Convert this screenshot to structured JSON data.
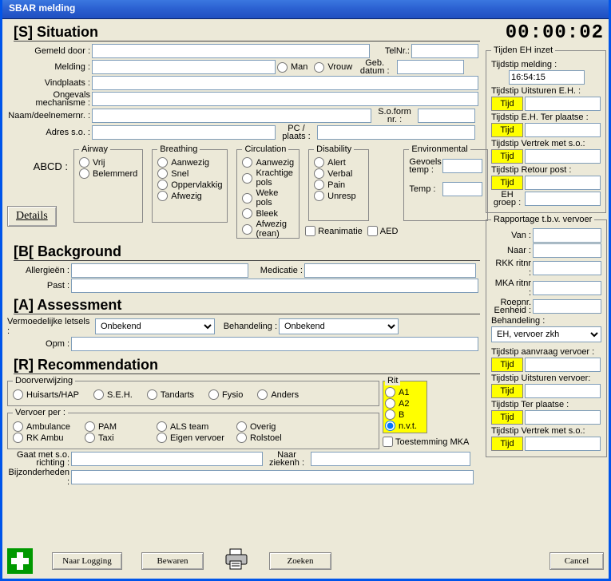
{
  "window": {
    "title": "SBAR melding"
  },
  "timer": "00:00:02",
  "situation": {
    "heading": "[S] Situation",
    "gemeld_door_lbl": "Gemeld door :",
    "telnr_lbl": "TelNr.:",
    "melding_lbl": "Melding :",
    "man_lbl": "Man",
    "vrouw_lbl": "Vrouw",
    "gebdatum_lbl": "Geb. datum :",
    "vindplaats_lbl": "Vindplaats :",
    "ongevals_lbl": "Ongevals mechanisme :",
    "naamdeel_lbl": "Naam/deelnemernr. :",
    "soform_lbl": "S.o.form nr. :",
    "adres_lbl": "Adres s.o. :",
    "pcplaats_lbl": "PC / plaats :",
    "abcd_lbl": "ABCD :",
    "airway_lbl": "Airway",
    "airway_opts": [
      "Vrij",
      "Belemmerd"
    ],
    "breathing_lbl": "Breathing",
    "breathing_opts": [
      "Aanwezig",
      "Snel",
      "Oppervlakkig",
      "Afwezig"
    ],
    "circulation_lbl": "Circulation",
    "circulation_opts": [
      "Aanwezig",
      "Krachtige pols",
      "Weke pols",
      "Bleek",
      "Afwezig (rean)"
    ],
    "disability_lbl": "Disability",
    "disability_opts": [
      "Alert",
      "Verbal",
      "Pain",
      "Unresp"
    ],
    "env_lbl": "Environmental",
    "gevoelstemp_lbl": "Gevoels temp :",
    "temp_lbl": "Temp :",
    "reanimatie_lbl": "Reanimatie",
    "aed_lbl": "AED",
    "details_btn": "Details"
  },
  "background": {
    "heading": "[B[ Background",
    "allergieen_lbl": "Allergieën :",
    "medicatie_lbl": "Medicatie :",
    "past_lbl": "Past :"
  },
  "assessment": {
    "heading": "[A] Assessment",
    "vermoedelijke_lbl": "Vermoedelijke letsels :",
    "vermoedelijke_val": "Onbekend",
    "behandeling_lbl": "Behandeling :",
    "behandeling_val": "Onbekend",
    "opm_lbl": "Opm :"
  },
  "recommendation": {
    "heading": "[R] Recommendation",
    "doorverwijzing_lbl": "Doorverwijzing",
    "doorverwijzing_opts": [
      "Huisarts/HAP",
      "S.E.H.",
      "Tandarts",
      "Fysio",
      "Anders"
    ],
    "vervoer_lbl": "Vervoer per :",
    "vervoer_opts_row1": [
      "Ambulance",
      "PAM",
      "ALS team",
      "Overig"
    ],
    "vervoer_opts_row2": [
      "RK Ambu",
      "Taxi",
      "Eigen vervoer",
      "Rolstoel"
    ],
    "rit_lbl": "Rit",
    "rit_opts": [
      "A1",
      "A2",
      "B",
      "n.v.t."
    ],
    "rit_selected": "n.v.t.",
    "toestemming_lbl": "Toestemming MKA",
    "gaatmet_lbl": "Gaat met s.o. richting :",
    "naarziekenh_lbl": "Naar ziekenh :",
    "bijzonderheden_lbl": "Bijzonderheden :"
  },
  "tijden": {
    "groupbox": "Tijden EH inzet",
    "melding_lbl": "Tijdstip melding :",
    "melding_val": "16:54:15",
    "uitsturen_eh_lbl": "Tijdstip Uitsturen E.H. :",
    "terplaatse_lbl": "Tijdstip E.H. Ter plaatse :",
    "vertrek_lbl": "Tijdstip Vertrek met s.o.:",
    "retour_lbl": "Tijdstip Retour post :",
    "ehgroep_lbl": "EH groep :",
    "tijd_btn": "Tijd"
  },
  "rapportage": {
    "groupbox": "Rapportage t.b.v. vervoer",
    "van_lbl": "Van :",
    "naar_lbl": "Naar :",
    "rkkritnr_lbl": "RKK ritnr :",
    "mkaritnr_lbl": "MKA ritnr :",
    "roepnr_lbl": "Roepnr. Eenheid :",
    "behandeling_lbl": "Behandeling :",
    "behandeling_val": "EH, vervoer zkh",
    "aanvraag_lbl": "Tijdstip aanvraag vervoer :",
    "uitsturen_lbl": "Tijdstip Uitsturen vervoer:",
    "terplaatse2_lbl": "Tijdstip Ter plaatse :",
    "vertrek2_lbl": "Tijdstip Vertrek met s.o.:",
    "tijd_btn": "Tijd"
  },
  "footer": {
    "naar_logging": "Naar Logging",
    "bewaren": "Bewaren",
    "zoeken": "Zoeken",
    "cancel": "Cancel"
  }
}
